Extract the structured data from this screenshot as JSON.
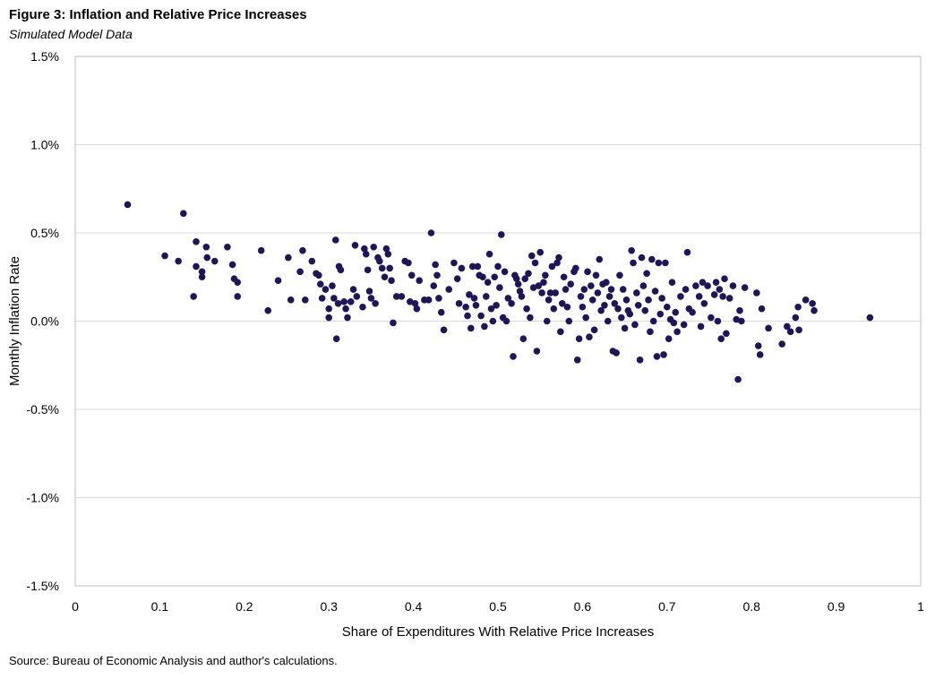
{
  "header": {
    "title": "Figure 3: Inflation and Relative Price Increases",
    "subtitle": "Simulated Model Data"
  },
  "footer": {
    "source": "Source: Bureau of Economic Analysis and author's calculations."
  },
  "chart_data": {
    "type": "scatter",
    "title": "Figure 3: Inflation and Relative Price Increases",
    "subtitle": "Simulated Model Data",
    "xlabel": "Share of Expenditures With Relative Price Increases",
    "ylabel": "Monthly Inflation Rate",
    "xlim": [
      0,
      1
    ],
    "ylim": [
      -1.5,
      1.5
    ],
    "x_ticks": [
      0,
      0.1,
      0.2,
      0.3,
      0.4,
      0.5,
      0.6,
      0.7,
      0.8,
      0.9,
      1
    ],
    "x_tick_labels": [
      "0",
      "0.1",
      "0.2",
      "0.3",
      "0.4",
      "0.5",
      "0.6",
      "0.7",
      "0.8",
      "0.9",
      "1"
    ],
    "y_ticks": [
      1.5,
      1.0,
      0.5,
      0.0,
      -0.5,
      -1.0,
      -1.5
    ],
    "y_tick_labels": [
      "1.5%",
      "1.0%",
      "0.5%",
      "0.0%",
      "-0.5%",
      "-1.0%",
      "-1.5%"
    ],
    "grid": "horizontal",
    "marker_color": "#1f1659",
    "grid_color": "#d9d9d9",
    "points": [
      [
        0.062,
        0.66
      ],
      [
        0.106,
        0.37
      ],
      [
        0.122,
        0.34
      ],
      [
        0.128,
        0.61
      ],
      [
        0.14,
        0.14
      ],
      [
        0.143,
        0.45
      ],
      [
        0.143,
        0.31
      ],
      [
        0.15,
        0.25
      ],
      [
        0.15,
        0.28
      ],
      [
        0.155,
        0.42
      ],
      [
        0.156,
        0.36
      ],
      [
        0.165,
        0.34
      ],
      [
        0.18,
        0.42
      ],
      [
        0.186,
        0.32
      ],
      [
        0.188,
        0.24
      ],
      [
        0.192,
        0.14
      ],
      [
        0.192,
        0.22
      ],
      [
        0.22,
        0.4
      ],
      [
        0.228,
        0.06
      ],
      [
        0.24,
        0.23
      ],
      [
        0.252,
        0.36
      ],
      [
        0.255,
        0.12
      ],
      [
        0.266,
        0.28
      ],
      [
        0.269,
        0.4
      ],
      [
        0.272,
        0.12
      ],
      [
        0.28,
        0.34
      ],
      [
        0.285,
        0.27
      ],
      [
        0.288,
        0.26
      ],
      [
        0.29,
        0.21
      ],
      [
        0.292,
        0.13
      ],
      [
        0.296,
        0.18
      ],
      [
        0.3,
        0.07
      ],
      [
        0.3,
        0.02
      ],
      [
        0.304,
        0.2
      ],
      [
        0.306,
        0.13
      ],
      [
        0.308,
        0.46
      ],
      [
        0.309,
        -0.1
      ],
      [
        0.311,
        0.1
      ],
      [
        0.312,
        0.31
      ],
      [
        0.314,
        0.29
      ],
      [
        0.318,
        0.11
      ],
      [
        0.32,
        0.07
      ],
      [
        0.322,
        0.02
      ],
      [
        0.326,
        0.11
      ],
      [
        0.329,
        0.18
      ],
      [
        0.331,
        0.43
      ],
      [
        0.333,
        0.14
      ],
      [
        0.34,
        0.08
      ],
      [
        0.342,
        0.41
      ],
      [
        0.344,
        0.38
      ],
      [
        0.346,
        0.29
      ],
      [
        0.348,
        0.17
      ],
      [
        0.35,
        0.13
      ],
      [
        0.353,
        0.42
      ],
      [
        0.355,
        0.1
      ],
      [
        0.358,
        0.36
      ],
      [
        0.36,
        0.34
      ],
      [
        0.363,
        0.3
      ],
      [
        0.366,
        0.25
      ],
      [
        0.368,
        0.41
      ],
      [
        0.37,
        0.38
      ],
      [
        0.372,
        0.3
      ],
      [
        0.374,
        0.23
      ],
      [
        0.376,
        -0.01
      ],
      [
        0.38,
        0.14
      ],
      [
        0.386,
        0.14
      ],
      [
        0.39,
        0.34
      ],
      [
        0.394,
        0.33
      ],
      [
        0.396,
        0.11
      ],
      [
        0.398,
        0.26
      ],
      [
        0.402,
        0.1
      ],
      [
        0.404,
        0.07
      ],
      [
        0.407,
        0.23
      ],
      [
        0.413,
        0.12
      ],
      [
        0.418,
        0.12
      ],
      [
        0.421,
        0.5
      ],
      [
        0.424,
        0.2
      ],
      [
        0.426,
        0.32
      ],
      [
        0.428,
        0.26
      ],
      [
        0.43,
        0.13
      ],
      [
        0.433,
        0.05
      ],
      [
        0.436,
        -0.05
      ],
      [
        0.442,
        0.18
      ],
      [
        0.448,
        0.33
      ],
      [
        0.452,
        0.24
      ],
      [
        0.454,
        0.1
      ],
      [
        0.457,
        0.3
      ],
      [
        0.462,
        0.08
      ],
      [
        0.464,
        0.03
      ],
      [
        0.466,
        0.15
      ],
      [
        0.468,
        -0.04
      ],
      [
        0.47,
        0.31
      ],
      [
        0.472,
        0.13
      ],
      [
        0.474,
        0.09
      ],
      [
        0.476,
        0.31
      ],
      [
        0.478,
        0.26
      ],
      [
        0.48,
        0.03
      ],
      [
        0.482,
        0.25
      ],
      [
        0.484,
        -0.03
      ],
      [
        0.486,
        0.14
      ],
      [
        0.488,
        0.22
      ],
      [
        0.49,
        0.38
      ],
      [
        0.492,
        0.07
      ],
      [
        0.494,
        0.0
      ],
      [
        0.496,
        0.25
      ],
      [
        0.498,
        0.09
      ],
      [
        0.5,
        0.31
      ],
      [
        0.502,
        0.19
      ],
      [
        0.504,
        0.49
      ],
      [
        0.506,
        0.02
      ],
      [
        0.508,
        0.28
      ],
      [
        0.51,
        0.0
      ],
      [
        0.512,
        0.13
      ],
      [
        0.516,
        0.1
      ],
      [
        0.518,
        -0.2
      ],
      [
        0.52,
        0.26
      ],
      [
        0.522,
        0.24
      ],
      [
        0.524,
        0.21
      ],
      [
        0.526,
        0.17
      ],
      [
        0.528,
        0.14
      ],
      [
        0.53,
        -0.1
      ],
      [
        0.532,
        0.24
      ],
      [
        0.534,
        0.07
      ],
      [
        0.536,
        0.27
      ],
      [
        0.538,
        0.02
      ],
      [
        0.54,
        0.37
      ],
      [
        0.542,
        0.19
      ],
      [
        0.544,
        0.33
      ],
      [
        0.546,
        -0.17
      ],
      [
        0.548,
        0.2
      ],
      [
        0.55,
        0.39
      ],
      [
        0.552,
        0.16
      ],
      [
        0.554,
        0.22
      ],
      [
        0.556,
        0.26
      ],
      [
        0.558,
        0.0
      ],
      [
        0.56,
        0.12
      ],
      [
        0.562,
        0.16
      ],
      [
        0.564,
        0.31
      ],
      [
        0.566,
        0.07
      ],
      [
        0.568,
        0.16
      ],
      [
        0.57,
        0.33
      ],
      [
        0.572,
        0.36
      ],
      [
        0.574,
        -0.06
      ],
      [
        0.576,
        0.1
      ],
      [
        0.578,
        0.25
      ],
      [
        0.58,
        0.18
      ],
      [
        0.582,
        0.08
      ],
      [
        0.584,
        0.0
      ],
      [
        0.586,
        0.21
      ],
      [
        0.59,
        0.28
      ],
      [
        0.592,
        0.3
      ],
      [
        0.594,
        -0.22
      ],
      [
        0.596,
        -0.1
      ],
      [
        0.598,
        0.14
      ],
      [
        0.6,
        0.08
      ],
      [
        0.602,
        0.18
      ],
      [
        0.604,
        0.02
      ],
      [
        0.606,
        0.28
      ],
      [
        0.608,
        -0.09
      ],
      [
        0.61,
        0.2
      ],
      [
        0.612,
        0.12
      ],
      [
        0.614,
        -0.05
      ],
      [
        0.616,
        0.26
      ],
      [
        0.618,
        0.16
      ],
      [
        0.62,
        0.35
      ],
      [
        0.622,
        0.06
      ],
      [
        0.624,
        0.21
      ],
      [
        0.626,
        0.09
      ],
      [
        0.628,
        0.22
      ],
      [
        0.63,
        0.0
      ],
      [
        0.632,
        0.14
      ],
      [
        0.634,
        0.18
      ],
      [
        0.636,
        -0.17
      ],
      [
        0.638,
        0.1
      ],
      [
        0.64,
        -0.18
      ],
      [
        0.642,
        0.07
      ],
      [
        0.644,
        0.26
      ],
      [
        0.646,
        0.02
      ],
      [
        0.648,
        0.18
      ],
      [
        0.65,
        -0.04
      ],
      [
        0.652,
        0.12
      ],
      [
        0.654,
        0.06
      ],
      [
        0.656,
        0.04
      ],
      [
        0.658,
        0.4
      ],
      [
        0.66,
        0.33
      ],
      [
        0.662,
        -0.02
      ],
      [
        0.664,
        0.16
      ],
      [
        0.666,
        0.09
      ],
      [
        0.668,
        -0.22
      ],
      [
        0.67,
        0.36
      ],
      [
        0.672,
        0.2
      ],
      [
        0.674,
        0.06
      ],
      [
        0.676,
        0.27
      ],
      [
        0.678,
        0.12
      ],
      [
        0.68,
        -0.06
      ],
      [
        0.682,
        0.35
      ],
      [
        0.684,
        0.0
      ],
      [
        0.686,
        0.17
      ],
      [
        0.688,
        -0.2
      ],
      [
        0.69,
        0.33
      ],
      [
        0.692,
        0.04
      ],
      [
        0.694,
        0.13
      ],
      [
        0.696,
        -0.19
      ],
      [
        0.698,
        0.33
      ],
      [
        0.7,
        0.08
      ],
      [
        0.702,
        -0.1
      ],
      [
        0.704,
        0.01
      ],
      [
        0.706,
        0.22
      ],
      [
        0.708,
        -0.01
      ],
      [
        0.71,
        0.05
      ],
      [
        0.712,
        -0.06
      ],
      [
        0.716,
        0.14
      ],
      [
        0.72,
        -0.02
      ],
      [
        0.722,
        0.18
      ],
      [
        0.724,
        0.39
      ],
      [
        0.726,
        0.07
      ],
      [
        0.73,
        0.05
      ],
      [
        0.734,
        0.2
      ],
      [
        0.738,
        0.14
      ],
      [
        0.74,
        -0.03
      ],
      [
        0.742,
        0.22
      ],
      [
        0.744,
        0.1
      ],
      [
        0.748,
        0.2
      ],
      [
        0.752,
        0.02
      ],
      [
        0.756,
        0.15
      ],
      [
        0.758,
        0.22
      ],
      [
        0.76,
        0.0
      ],
      [
        0.762,
        0.18
      ],
      [
        0.764,
        -0.1
      ],
      [
        0.766,
        0.14
      ],
      [
        0.768,
        0.24
      ],
      [
        0.77,
        -0.07
      ],
      [
        0.774,
        0.13
      ],
      [
        0.778,
        0.2
      ],
      [
        0.782,
        0.01
      ],
      [
        0.784,
        -0.33
      ],
      [
        0.786,
        0.06
      ],
      [
        0.788,
        0.0
      ],
      [
        0.792,
        0.19
      ],
      [
        0.806,
        0.16
      ],
      [
        0.808,
        -0.14
      ],
      [
        0.81,
        -0.19
      ],
      [
        0.812,
        0.07
      ],
      [
        0.82,
        -0.04
      ],
      [
        0.836,
        -0.13
      ],
      [
        0.842,
        -0.03
      ],
      [
        0.846,
        -0.06
      ],
      [
        0.852,
        0.02
      ],
      [
        0.855,
        0.08
      ],
      [
        0.856,
        -0.05
      ],
      [
        0.864,
        0.12
      ],
      [
        0.872,
        0.1
      ],
      [
        0.874,
        0.06
      ],
      [
        0.94,
        0.02
      ]
    ]
  }
}
